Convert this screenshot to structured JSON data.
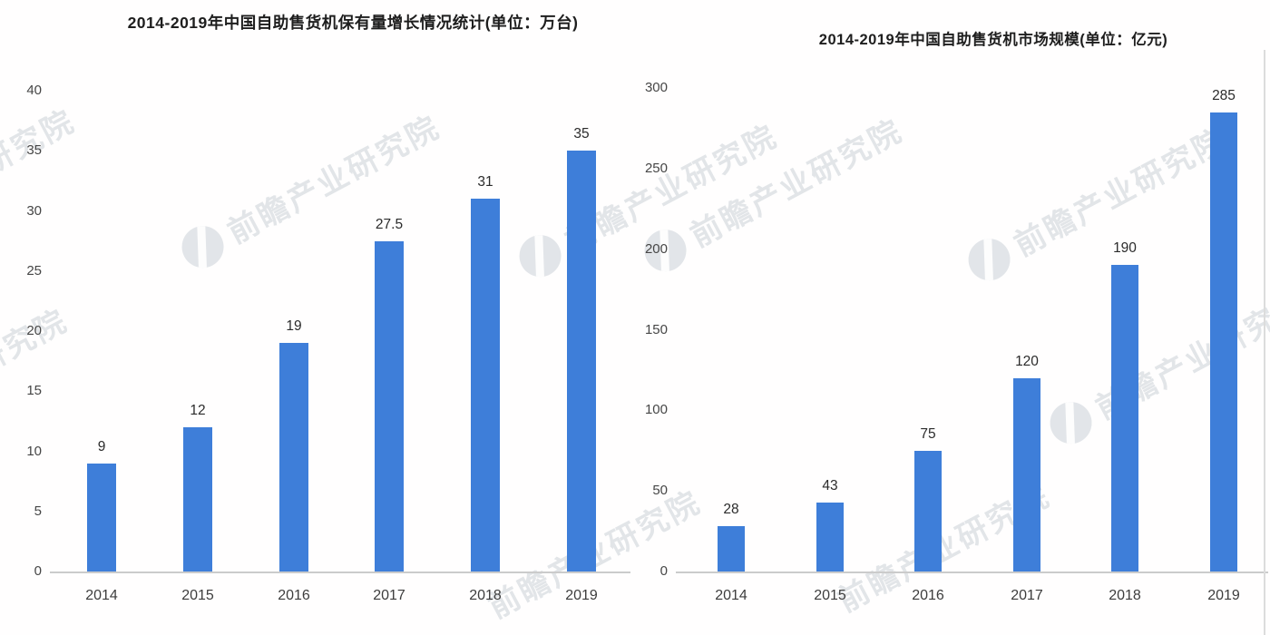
{
  "page": {
    "background": "#ffffff"
  },
  "watermark": {
    "text": "前瞻产业研究院",
    "color": "#cbd1d7"
  },
  "chart_data": [
    {
      "type": "bar",
      "title": "2014-2019年中国自助售货机保有量增长情况统计(单位：万台)",
      "categories": [
        "2014",
        "2015",
        "2016",
        "2017",
        "2018",
        "2019"
      ],
      "values": [
        9,
        12,
        19,
        27.5,
        31,
        35
      ],
      "bar_labels": [
        "9",
        "12",
        "19",
        "27.5",
        "31",
        "35"
      ],
      "xlabel": "",
      "ylabel": "",
      "ylim": [
        0,
        40
      ],
      "yticks": [
        0,
        5,
        10,
        15,
        20,
        25,
        30,
        35,
        40
      ],
      "grid": false,
      "legend": null,
      "bar_color": "#3e7ed9"
    },
    {
      "type": "bar",
      "title": "2014-2019年中国自助售货机市场规模(单位：亿元)",
      "categories": [
        "2014",
        "2015",
        "2016",
        "2017",
        "2018",
        "2019"
      ],
      "values": [
        28,
        43,
        75,
        120,
        190,
        285
      ],
      "bar_labels": [
        "28",
        "43",
        "75",
        "120",
        "190",
        "285"
      ],
      "xlabel": "",
      "ylabel": "",
      "ylim": [
        0,
        300
      ],
      "yticks": [
        0,
        50,
        100,
        150,
        200,
        250,
        300
      ],
      "grid": false,
      "legend": null,
      "bar_color": "#3e7ed9"
    }
  ]
}
